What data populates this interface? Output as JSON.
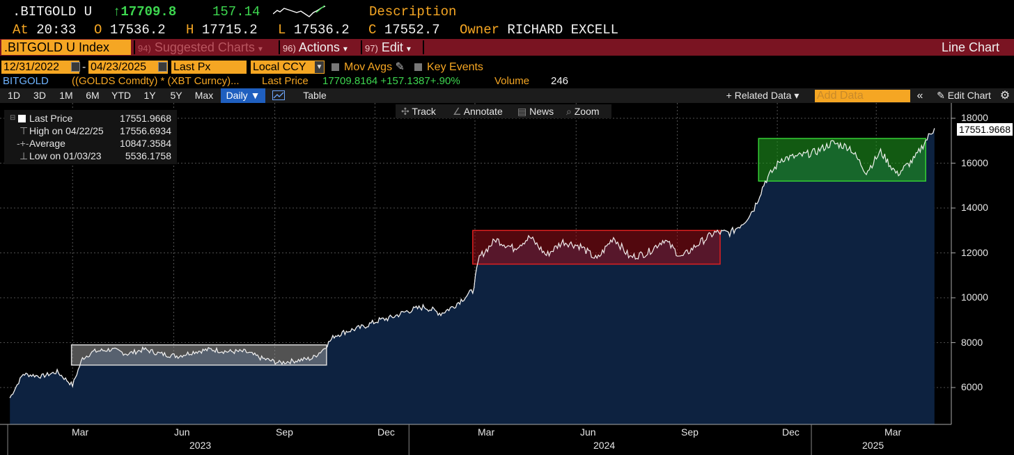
{
  "header": {
    "ticker": ".BITGOLD U",
    "arrow": "↑",
    "last": "17709.8",
    "change": "157.14",
    "description_label": "Description",
    "at_label": "At",
    "time": "20:33",
    "open_label": "O",
    "open": "17536.2",
    "high_label": "H",
    "high": "17715.2",
    "low_label": "L",
    "low": "17536.2",
    "close_label": "C",
    "close": "17552.7",
    "owner_label": "Owner",
    "owner": "RICHARD EXCELL"
  },
  "menubar": {
    "index": ".BITGOLD U Index",
    "suggested_num": "94)",
    "suggested": "Suggested Charts",
    "actions_num": "96)",
    "actions": "Actions",
    "edit_num": "97)",
    "edit": "Edit",
    "chart_type": "Line Chart"
  },
  "controls": {
    "start_date": "12/31/2022",
    "dash": "-",
    "end_date": "04/23/2025",
    "field": "Last Px",
    "currency": "Local CCY",
    "mov_avgs": "Mov Avgs",
    "key_events": "Key Events"
  },
  "security": {
    "name": "BITGOLD",
    "formula": "((GOLDS Comdty) * (XBT Curncy)...",
    "last_price_label": "Last Price",
    "last_price": "17709.8164",
    "change": "+157.1387",
    "change_pct": "+.90%",
    "volume_label": "Volume",
    "volume": "246"
  },
  "toolbar": {
    "periods": [
      "1D",
      "3D",
      "1M",
      "6M",
      "YTD",
      "1Y",
      "5Y",
      "Max"
    ],
    "frequency": "Daily ▼",
    "table": "Table",
    "related": "+ Related Data ▾",
    "add_data_placeholder": "Add Data",
    "collapse": "«",
    "edit_chart": "Edit Chart"
  },
  "chart_tools": {
    "track": "Track",
    "annotate": "Annotate",
    "news": "News",
    "zoom": "Zoom"
  },
  "legend": {
    "last_label": "Last Price",
    "last_value": "17551.9668",
    "high_label": "High on 04/22/25",
    "high_value": "17556.6934",
    "avg_label": "Average",
    "avg_value": "10847.3584",
    "low_label": "Low on 01/03/23",
    "low_value": "5536.1758"
  },
  "colors": {
    "area_fill": "#0d2240",
    "line": "#e8e8e8",
    "accent": "#f5a623",
    "menubar": "#7a1422",
    "box_gray": "#8a8a8a",
    "box_red": "#8b0f18",
    "box_green": "#1d8a1d"
  },
  "chart_data": {
    "type": "area",
    "title": "",
    "xlabel": "",
    "ylabel": "",
    "ylim": [
      4500,
      18500
    ],
    "yticks": [
      "6000",
      "8000",
      "10000",
      "12000",
      "14000",
      "16000",
      "18000"
    ],
    "xticks": [
      "Mar",
      "Jun",
      "Sep",
      "Dec",
      "Mar",
      "Jun",
      "Sep",
      "Dec",
      "Mar"
    ],
    "years": [
      "2023",
      "2024",
      "2025"
    ],
    "last_value_label": "17551.9668",
    "series": [
      {
        "x": [
          "2023-01-03",
          "2023-01-15",
          "2023-02-01",
          "2023-02-15",
          "2023-03-01",
          "2023-03-10",
          "2023-03-20",
          "2023-04-05",
          "2023-04-20",
          "2023-05-05",
          "2023-05-20",
          "2023-06-05",
          "2023-06-20",
          "2023-07-05",
          "2023-07-20",
          "2023-08-05",
          "2023-08-20",
          "2023-09-05",
          "2023-09-20",
          "2023-10-05",
          "2023-10-15",
          "2023-10-25",
          "2023-11-05",
          "2023-11-20",
          "2023-12-05",
          "2023-12-15",
          "2023-12-30",
          "2024-01-15",
          "2024-01-30",
          "2024-02-10",
          "2024-02-20",
          "2024-02-28",
          "2024-03-05",
          "2024-03-20",
          "2024-04-05",
          "2024-04-20",
          "2024-05-05",
          "2024-05-20",
          "2024-06-05",
          "2024-06-20",
          "2024-07-05",
          "2024-07-20",
          "2024-08-05",
          "2024-08-20",
          "2024-09-05",
          "2024-09-20",
          "2024-10-05",
          "2024-10-20",
          "2024-11-01",
          "2024-11-10",
          "2024-11-20",
          "2024-12-05",
          "2024-12-20",
          "2025-01-05",
          "2025-01-20",
          "2025-02-05",
          "2025-02-20",
          "2025-03-05",
          "2025-03-20",
          "2025-04-05",
          "2025-04-15",
          "2025-04-23"
        ],
        "values": [
          5536,
          6600,
          6500,
          6700,
          6100,
          7300,
          7600,
          7700,
          7500,
          7700,
          7500,
          7400,
          7600,
          7700,
          7600,
          7600,
          7300,
          7100,
          7200,
          7300,
          7700,
          8300,
          8500,
          8700,
          9000,
          9100,
          9400,
          9600,
          9300,
          9600,
          10000,
          10300,
          11800,
          12600,
          12200,
          12700,
          11900,
          12500,
          12300,
          11700,
          12700,
          11800,
          12000,
          12600,
          11800,
          12400,
          12900,
          12900,
          13400,
          14000,
          15200,
          16200,
          16300,
          16500,
          16900,
          16700,
          15600,
          16500,
          15500,
          16200,
          17000,
          17552
        ]
      }
    ],
    "boxes": [
      {
        "color": "gray",
        "x_start": "2023-02-28",
        "x_end": "2023-10-18",
        "y_low": 7000,
        "y_high": 7900
      },
      {
        "color": "red",
        "x_start": "2024-02-28",
        "x_end": "2024-10-10",
        "y_low": 11500,
        "y_high": 13000
      },
      {
        "color": "green",
        "x_start": "2024-11-14",
        "x_end": "2025-04-15",
        "y_low": 15200,
        "y_high": 17100
      }
    ]
  }
}
